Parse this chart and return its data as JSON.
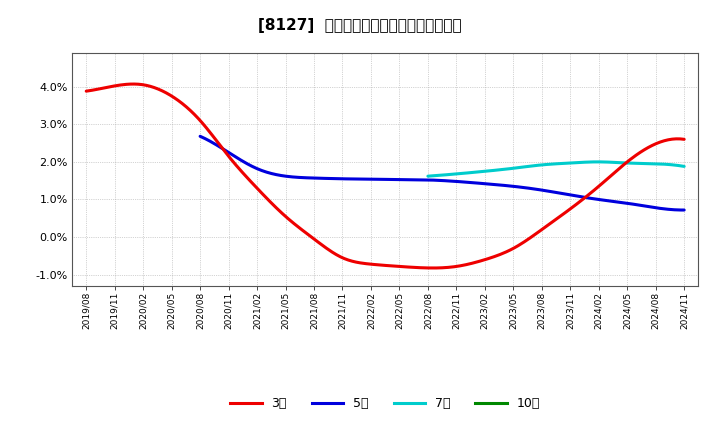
{
  "title": "[8127]  経常利益マージンの平均値の推移",
  "background_color": "#ffffff",
  "plot_bg_color": "#ffffff",
  "grid_color": "#aaaaaa",
  "xlabels": [
    "2019/08",
    "2019/11",
    "2020/02",
    "2020/05",
    "2020/08",
    "2020/11",
    "2021/02",
    "2021/05",
    "2021/08",
    "2021/11",
    "2022/02",
    "2022/05",
    "2022/08",
    "2022/11",
    "2023/02",
    "2023/05",
    "2023/08",
    "2023/11",
    "2024/02",
    "2024/05",
    "2024/08",
    "2024/11"
  ],
  "ylim": [
    -0.013,
    0.049
  ],
  "yticks": [
    -0.01,
    0.0,
    0.01,
    0.02,
    0.03,
    0.04
  ],
  "ytick_labels": [
    "-1.0%",
    "0.0%",
    "1.0%",
    "2.0%",
    "3.0%",
    "4.0%"
  ],
  "series_3y": {
    "color": "#ee0000",
    "label": "3年",
    "values_x": [
      0,
      1,
      2,
      3,
      4,
      5,
      6,
      7,
      8,
      9,
      10,
      11,
      12,
      13,
      14,
      15,
      16,
      17,
      18,
      19,
      20,
      21
    ],
    "values_y": [
      3.88,
      4.02,
      4.05,
      3.75,
      3.1,
      2.15,
      1.3,
      0.55,
      -0.05,
      -0.55,
      -0.72,
      -0.78,
      -0.82,
      -0.78,
      -0.6,
      -0.3,
      0.2,
      0.75,
      1.35,
      2.0,
      2.48,
      2.6
    ]
  },
  "series_5y": {
    "color": "#0000dd",
    "label": "5年",
    "values_x": [
      4,
      5,
      6,
      7,
      8,
      9,
      10,
      11,
      12,
      13,
      14,
      15,
      16,
      17,
      18,
      19,
      20,
      21
    ],
    "values_y": [
      2.68,
      2.25,
      1.82,
      1.62,
      1.57,
      1.55,
      1.54,
      1.53,
      1.52,
      1.48,
      1.42,
      1.35,
      1.25,
      1.12,
      1.0,
      0.9,
      0.78,
      0.72
    ]
  },
  "series_7y": {
    "color": "#00cccc",
    "label": "7年",
    "values_x": [
      12,
      13,
      14,
      15,
      16,
      17,
      18,
      19,
      20,
      21
    ],
    "values_y": [
      1.62,
      1.68,
      1.75,
      1.83,
      1.92,
      1.97,
      2.0,
      1.97,
      1.95,
      1.88
    ]
  },
  "series_10y": {
    "color": "#008800",
    "label": "10年",
    "values_x": [],
    "values_y": []
  },
  "legend_labels": [
    "3年",
    "5年",
    "7年",
    "10年"
  ],
  "legend_colors": [
    "#ee0000",
    "#0000dd",
    "#00cccc",
    "#008800"
  ]
}
